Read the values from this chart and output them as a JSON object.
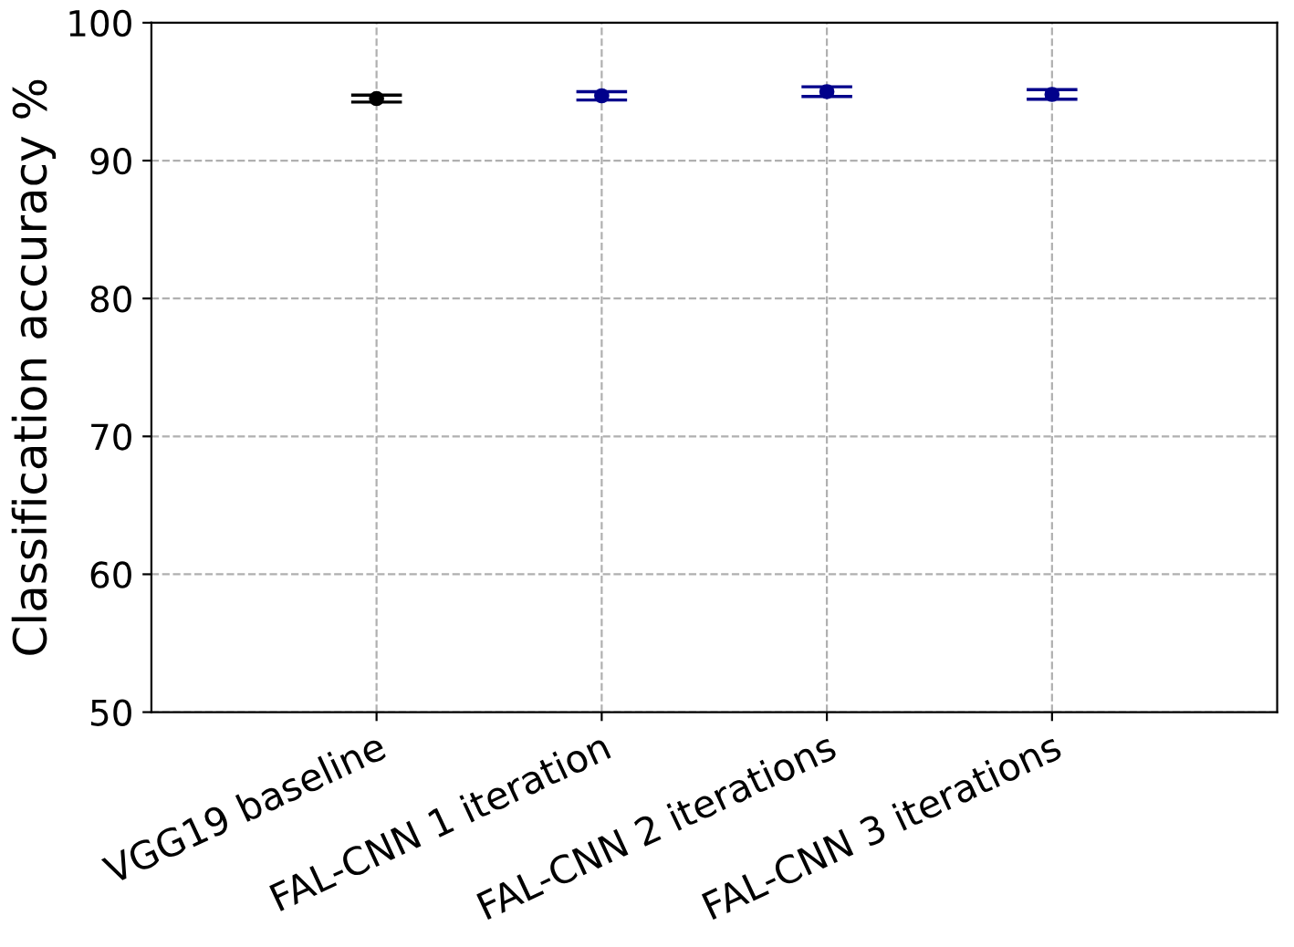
{
  "chart_data": {
    "type": "scatter",
    "ylabel": "Classification accuracy %",
    "categories": [
      "VGG19 baseline",
      "FAL-CNN 1 iteration",
      "FAL-CNN 2 iterations",
      "FAL-CNN 3 iterations"
    ],
    "values": [
      94.5,
      94.7,
      95.0,
      94.8
    ],
    "errors": [
      0.25,
      0.3,
      0.35,
      0.35
    ],
    "colors": [
      "#000000",
      "#00008b",
      "#00008b",
      "#00008b"
    ],
    "ylim": [
      50,
      100
    ],
    "yticks": [
      50,
      60,
      70,
      80,
      90,
      100
    ],
    "grid": true,
    "marker": "circle"
  }
}
